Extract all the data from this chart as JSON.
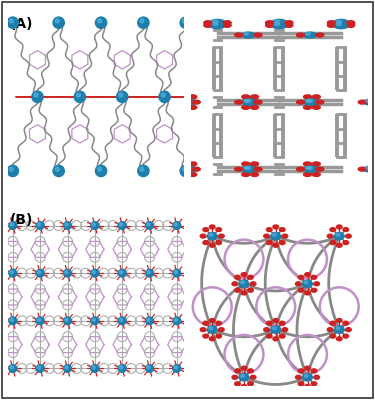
{
  "label_A": "(A)",
  "label_B": "(B)",
  "bg_color": "#ffffff",
  "zn_color": "#1e7fad",
  "red_color": "#cc2222",
  "gray_color": "#888888",
  "gray_light": "#aaaaaa",
  "pink_color": "#c090c8",
  "dark_gray": "#666666"
}
